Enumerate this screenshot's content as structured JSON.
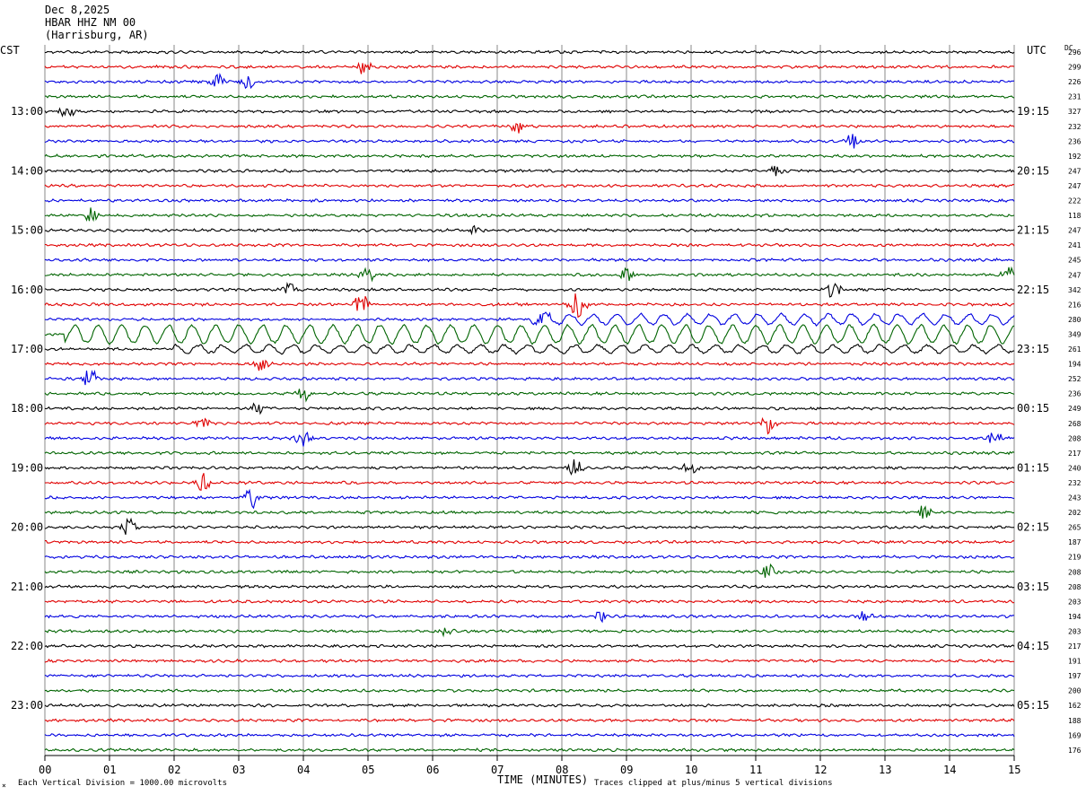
{
  "header": {
    "date": "Dec 8,2025",
    "station": "HBAR HHZ NM 00",
    "location": "(Harrisburg, AR)"
  },
  "left_zone_label": "CST",
  "right_zone_label": "UTC",
  "dc_header": "DC",
  "footer": {
    "scale_note": "Each Vertical Division = 1000.00 microvolts",
    "clip_note": "Traces clipped at plus/minus 5 vertical divisions",
    "corner_mark": "×"
  },
  "colors": {
    "cycle": [
      "#000000",
      "#e00000",
      "#0000e0",
      "#006400"
    ],
    "grid": "#000000"
  },
  "chart_data": {
    "type": "line",
    "title": "",
    "xlabel": "TIME (MINUTES)",
    "ylabel": "",
    "xlim": [
      0,
      15
    ],
    "x_ticks": [
      "00",
      "01",
      "02",
      "03",
      "04",
      "05",
      "06",
      "07",
      "08",
      "09",
      "10",
      "11",
      "12",
      "13",
      "14",
      "15"
    ],
    "grid": "vertical",
    "trace_count": 48,
    "left_time_labels": [
      "13:00",
      "14:00",
      "15:00",
      "16:00",
      "17:00",
      "18:00",
      "19:00",
      "20:00",
      "21:00",
      "22:00",
      "23:00"
    ],
    "right_time_labels": [
      "19:15",
      "20:15",
      "21:15",
      "22:15",
      "23:15",
      "00:15",
      "01:15",
      "02:15",
      "03:15",
      "04:15",
      "05:15"
    ],
    "hour_label_trace_index": [
      4,
      8,
      12,
      16,
      20,
      24,
      28,
      32,
      36,
      40,
      44
    ],
    "dc_values": [
      296,
      299,
      226,
      231,
      327,
      232,
      236,
      192,
      247,
      247,
      222,
      118,
      247,
      241,
      245,
      247,
      342,
      216,
      280,
      349,
      261,
      194,
      252,
      236,
      249,
      268,
      208,
      217,
      240,
      232,
      243,
      202,
      265,
      187,
      219,
      208,
      208,
      203,
      194,
      203,
      217,
      191,
      197,
      200,
      162,
      188,
      169,
      176
    ],
    "bursts": [
      {
        "trace": 1,
        "minute": 4.95,
        "amplitude": 1.5
      },
      {
        "trace": 2,
        "minute": 2.65,
        "amplitude": 1.2
      },
      {
        "trace": 2,
        "minute": 3.15,
        "amplitude": 1.0
      },
      {
        "trace": 4,
        "minute": 0.35,
        "amplitude": 1.0
      },
      {
        "trace": 5,
        "minute": 7.3,
        "amplitude": 1.2
      },
      {
        "trace": 6,
        "minute": 12.5,
        "amplitude": 1.0
      },
      {
        "trace": 8,
        "minute": 11.3,
        "amplitude": 1.0
      },
      {
        "trace": 11,
        "minute": 0.7,
        "amplitude": 1.2
      },
      {
        "trace": 12,
        "minute": 6.7,
        "amplitude": 1.1
      },
      {
        "trace": 15,
        "minute": 5.0,
        "amplitude": 1.4
      },
      {
        "trace": 15,
        "minute": 9.0,
        "amplitude": 1.0
      },
      {
        "trace": 15,
        "minute": 14.9,
        "amplitude": 1.2
      },
      {
        "trace": 16,
        "minute": 12.2,
        "amplitude": 1.4
      },
      {
        "trace": 16,
        "minute": 3.8,
        "amplitude": 1.0
      },
      {
        "trace": 17,
        "minute": 4.9,
        "amplitude": 1.8
      },
      {
        "trace": 17,
        "minute": 8.25,
        "amplitude": 2.2
      },
      {
        "trace": 18,
        "minute": 7.7,
        "amplitude": 1.0
      },
      {
        "trace": 21,
        "minute": 3.35,
        "amplitude": 1.1
      },
      {
        "trace": 22,
        "minute": 0.7,
        "amplitude": 1.6
      },
      {
        "trace": 23,
        "minute": 4.0,
        "amplitude": 1.2
      },
      {
        "trace": 24,
        "minute": 3.3,
        "amplitude": 1.4
      },
      {
        "trace": 25,
        "minute": 2.45,
        "amplitude": 1.0
      },
      {
        "trace": 25,
        "minute": 11.2,
        "amplitude": 1.6
      },
      {
        "trace": 26,
        "minute": 4.0,
        "amplitude": 1.4
      },
      {
        "trace": 26,
        "minute": 14.7,
        "amplitude": 1.0
      },
      {
        "trace": 28,
        "minute": 8.2,
        "amplitude": 1.4
      },
      {
        "trace": 28,
        "minute": 10.0,
        "amplitude": 1.0
      },
      {
        "trace": 29,
        "minute": 2.45,
        "amplitude": 1.3
      },
      {
        "trace": 30,
        "minute": 3.2,
        "amplitude": 1.5
      },
      {
        "trace": 31,
        "minute": 13.6,
        "amplitude": 1.0
      },
      {
        "trace": 32,
        "minute": 1.3,
        "amplitude": 1.6
      },
      {
        "trace": 35,
        "minute": 11.2,
        "amplitude": 1.2
      },
      {
        "trace": 38,
        "minute": 8.6,
        "amplitude": 0.8
      },
      {
        "trace": 38,
        "minute": 12.7,
        "amplitude": 0.8
      },
      {
        "trace": 39,
        "minute": 6.2,
        "amplitude": 0.8
      }
    ],
    "long_period_traces": [
      {
        "trace": 18,
        "start_minute": 7.5,
        "amplitude": 0.8
      },
      {
        "trace": 19,
        "start_minute": 0.3,
        "amplitude": 1.4
      },
      {
        "trace": 20,
        "start_minute": 2.0,
        "amplitude": 0.6
      }
    ]
  }
}
